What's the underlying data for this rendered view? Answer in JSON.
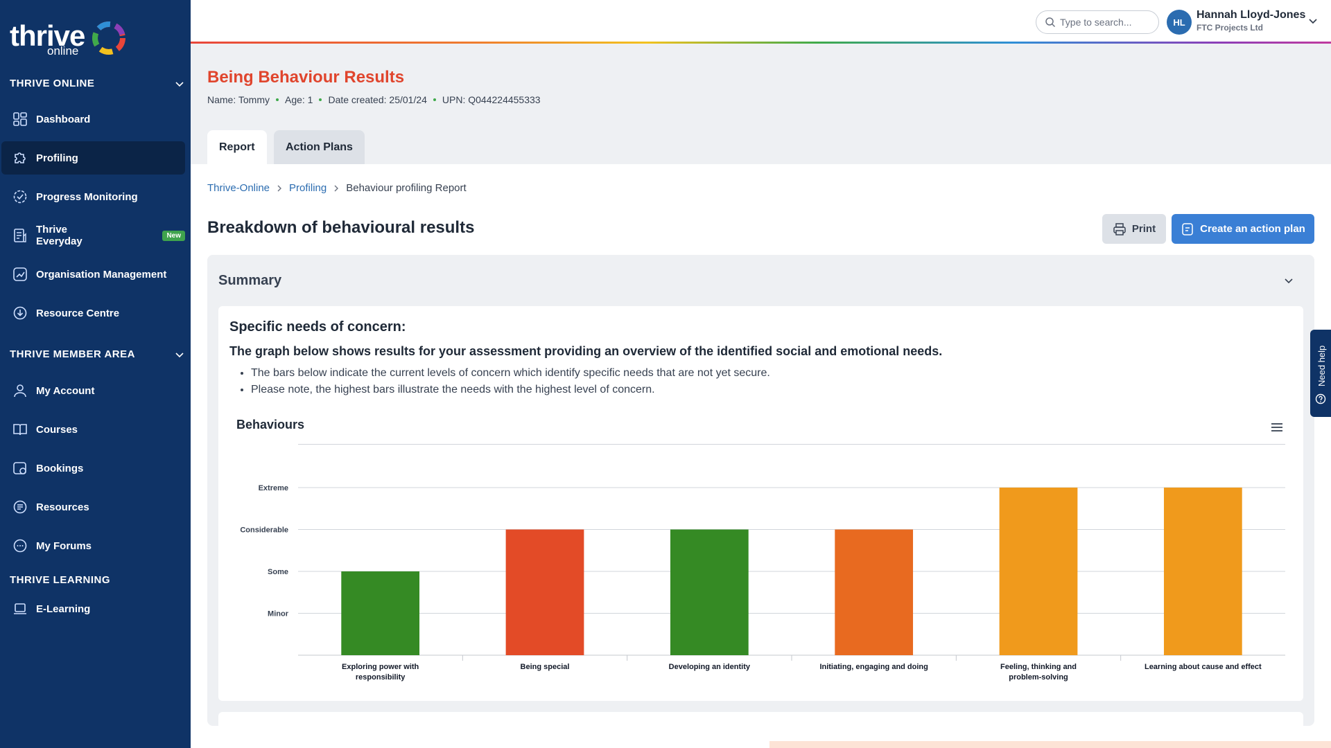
{
  "sidebar": {
    "logo_text": "thrive",
    "logo_sub": "online",
    "sections": [
      {
        "title": "THRIVE ONLINE"
      },
      {
        "title": "THRIVE MEMBER AREA"
      },
      {
        "title": "THRIVE LEARNING"
      }
    ],
    "items": [
      {
        "label": "Dashboard",
        "icon": "dashboard-icon"
      },
      {
        "label": "Profiling",
        "icon": "puzzle-icon",
        "active": true
      },
      {
        "label": "Progress Monitoring",
        "icon": "progress-icon"
      },
      {
        "label": "Thrive Everyday",
        "icon": "document-icon",
        "badge": "New"
      },
      {
        "label": "Organisation Management",
        "icon": "chart-icon"
      },
      {
        "label": "Resource Centre",
        "icon": "resource-icon"
      },
      {
        "label": "My Account",
        "icon": "user-icon"
      },
      {
        "label": "Courses",
        "icon": "book-icon"
      },
      {
        "label": "Bookings",
        "icon": "calendar-icon"
      },
      {
        "label": "Resources",
        "icon": "folder-icon"
      },
      {
        "label": "My Forums",
        "icon": "chat-icon"
      },
      {
        "label": "E-Learning",
        "icon": "laptop-icon"
      }
    ]
  },
  "topbar": {
    "search_placeholder": "Type to search...",
    "avatar_initials": "HL",
    "user_name": "Hannah Lloyd-Jones",
    "user_org": "FTC Projects Ltd"
  },
  "header": {
    "title": "Being Behaviour Results",
    "meta": {
      "name": "Name: Tommy",
      "age": "Age: 1",
      "date": "Date created: 25/01/24",
      "upn": "UPN: Q044224455333"
    },
    "tabs": [
      {
        "label": "Report"
      },
      {
        "label": "Action Plans"
      }
    ]
  },
  "breadcrumb": {
    "items": [
      "Thrive-Online",
      "Profiling",
      "Behaviour profiling Report"
    ]
  },
  "main": {
    "heading": "Breakdown of behavioural results",
    "print_label": "Print",
    "action_label": "Create an action plan",
    "summary": {
      "title": "Summary",
      "concern_heading": "Specific needs of concern:",
      "concern_sub": "The graph below shows results for your assessment providing an overview of the identified social and emotional needs.",
      "bullets": [
        "The bars below indicate the current levels of concern which identify specific needs that are not yet secure.",
        "Please note, the highest bars illustrate the needs with the highest level of concern."
      ]
    },
    "help_label": "Need help"
  },
  "chart_data": {
    "type": "bar",
    "title": "Behaviours",
    "categories": [
      "Exploring power with responsibility",
      "Being special",
      "Developing an identity",
      "Initiating, engaging and doing",
      "Feeling, thinking and problem-solving",
      "Learning about cause and effect"
    ],
    "values": [
      2,
      3,
      3,
      3,
      4,
      4
    ],
    "colors": [
      "#358a24",
      "#e34b27",
      "#358a24",
      "#e86a20",
      "#f09a1c",
      "#f09a1c"
    ],
    "y_tick_labels": [
      "Minor",
      "Some",
      "Considerable",
      "Extreme"
    ],
    "ylim": [
      0,
      4
    ],
    "grid": true
  }
}
